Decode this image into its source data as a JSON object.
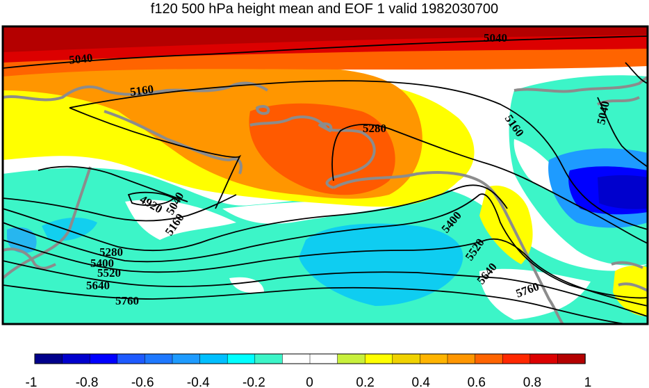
{
  "title": "f120 500 hPa height mean and EOF 1 valid 1982030700",
  "contour_labels": [
    {
      "id": "c-5040-a",
      "text": "5040"
    },
    {
      "id": "c-5040-b",
      "text": "5040"
    },
    {
      "id": "c-5040-c",
      "text": "5040"
    },
    {
      "id": "c-5040-d",
      "text": "5040"
    },
    {
      "id": "c-5160-a",
      "text": "5160"
    },
    {
      "id": "c-5160-b",
      "text": "5160"
    },
    {
      "id": "c-5160-c",
      "text": "5160"
    },
    {
      "id": "c-5280-a",
      "text": "5280"
    },
    {
      "id": "c-5280-b",
      "text": "5280"
    },
    {
      "id": "c-4920",
      "text": "4920"
    },
    {
      "id": "c-5400-a",
      "text": "5400"
    },
    {
      "id": "c-5400-b",
      "text": "5400"
    },
    {
      "id": "c-5520-a",
      "text": "5520"
    },
    {
      "id": "c-5520-b",
      "text": "5520"
    },
    {
      "id": "c-5640-a",
      "text": "5640"
    },
    {
      "id": "c-5640-b",
      "text": "5640"
    },
    {
      "id": "c-5760-a",
      "text": "5760"
    },
    {
      "id": "c-5760-b",
      "text": "5760"
    }
  ],
  "colorbar": {
    "colors": [
      "#00008b",
      "#0000cd",
      "#0000ff",
      "#1e5aff",
      "#1e78ff",
      "#1e9bff",
      "#00bfff",
      "#00ffff",
      "#3cf5c8",
      "#ffffff",
      "#ffffff",
      "#c8f03c",
      "#ffff00",
      "#f0d200",
      "#ffb400",
      "#ff9600",
      "#ff6400",
      "#ff2800",
      "#dc0000",
      "#b40000"
    ],
    "tick_labels": [
      "-1",
      "-0.8",
      "-0.6",
      "-0.4",
      "-0.2",
      "0",
      "0.2",
      "0.4",
      "0.6",
      "0.8",
      "1"
    ]
  }
}
